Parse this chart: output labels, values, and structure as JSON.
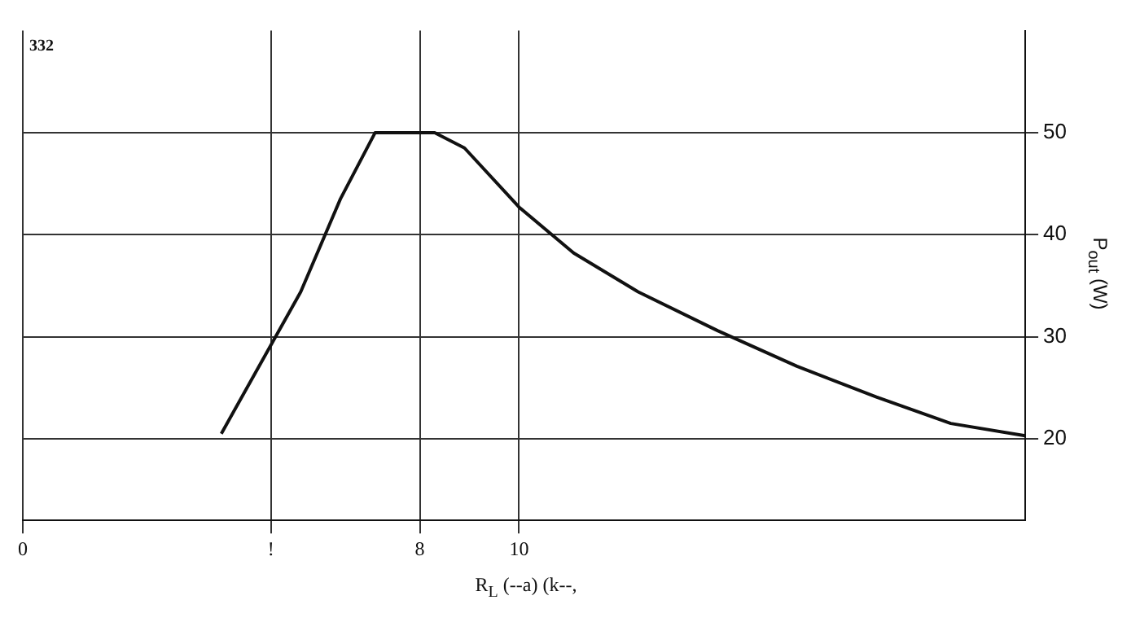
{
  "chart_data": {
    "type": "line",
    "xlabel": "R$_{L}$ (--a) (k--,",
    "ylabel": "P$_{out}$ (W)",
    "annotations": [
      "332"
    ],
    "x": [
      4.0,
      5.6,
      6.4,
      7.1,
      8.3,
      8.9,
      10,
      11.1,
      12.4,
      14,
      15.6,
      17.2,
      18.7,
      20.2
    ],
    "series": [
      {
        "color": "#111111",
        "values": [
          20.5,
          34.4,
          43.5,
          50,
          50,
          48.5,
          42.7,
          38.2,
          34.4,
          30.6,
          27.1,
          24.1,
          21.5,
          20.3
        ]
      }
    ],
    "xlim": [
      0,
      20.2
    ],
    "xticks": [
      0,
      {
        "value": 5,
        "label": "!"
      },
      8,
      10
    ],
    "ylim": [
      12,
      60
    ],
    "yticks": [
      20,
      30,
      40,
      50
    ],
    "grid": true,
    "legend": false,
    "marker": "none",
    "line_style": "solid"
  }
}
